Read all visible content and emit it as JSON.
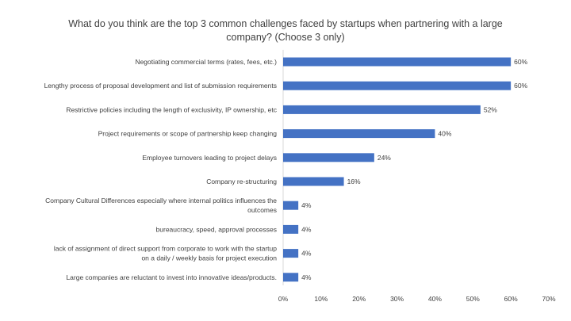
{
  "chart_data": {
    "type": "bar",
    "orientation": "horizontal",
    "title": "What do you think are the top 3 common challenges faced by startups when partnering with a large company? (Choose 3 only)",
    "categories": [
      "Negotiating commercial terms (rates, fees, etc.)",
      "Lengthy process of proposal development and list of submission requirements",
      "Restrictive policies including the length of exclusivity, IP ownership, etc",
      "Project requirements or scope of partnership keep changing",
      "Employee turnovers leading to project delays",
      "Company re-structuring",
      "Company Cultural Differences especially where internal politics influences the outcomes",
      "bureaucracy, speed, approval processes",
      "lack of assignment of direct support from corporate to work with the startup on a daily / weekly basis for project execution",
      "Large companies are reluctant to invest into innovative ideas/products."
    ],
    "category_lines": [
      [
        "Negotiating commercial terms (rates, fees, etc.)"
      ],
      [
        "Lengthy process of proposal development and list of submission requirements"
      ],
      [
        "Restrictive policies including the length of exclusivity, IP ownership, etc"
      ],
      [
        "Project requirements or scope of partnership keep changing"
      ],
      [
        "Employee turnovers leading to project delays"
      ],
      [
        "Company re-structuring"
      ],
      [
        "Company Cultural Differences especially where internal politics influences the",
        "outcomes"
      ],
      [
        "bureaucracy, speed, approval processes"
      ],
      [
        "lack of assignment of direct support from corporate to work with the startup",
        "on a daily / weekly basis for project execution"
      ],
      [
        "Large companies are reluctant to invest into innovative ideas/products."
      ]
    ],
    "values": [
      60,
      60,
      52,
      40,
      24,
      16,
      4,
      4,
      4,
      4
    ],
    "value_labels": [
      "60%",
      "60%",
      "52%",
      "40%",
      "24%",
      "16%",
      "4%",
      "4%",
      "4%",
      "4%"
    ],
    "xlim": [
      0,
      70
    ],
    "x_ticks": [
      0,
      10,
      20,
      30,
      40,
      50,
      60,
      70
    ],
    "x_tick_labels": [
      "0%",
      "10%",
      "20%",
      "30%",
      "40%",
      "50%",
      "60%",
      "70%"
    ],
    "grid": false,
    "legend": "none",
    "bar_color": "#4472C4",
    "axis_color": "#d9d9d9"
  }
}
